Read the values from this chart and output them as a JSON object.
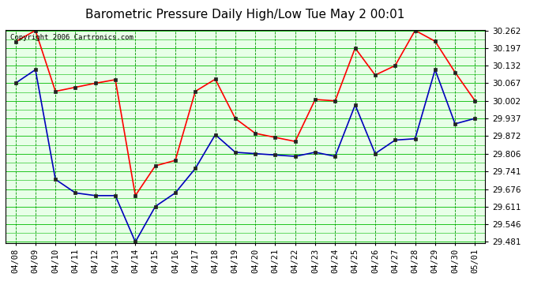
{
  "title": "Barometric Pressure Daily High/Low Tue May 2 00:01",
  "copyright": "Copyright 2006 Cartronics.com",
  "x_labels": [
    "04/08",
    "04/09",
    "04/10",
    "04/11",
    "04/12",
    "04/13",
    "04/14",
    "04/15",
    "04/16",
    "04/17",
    "04/18",
    "04/19",
    "04/20",
    "04/21",
    "04/22",
    "04/23",
    "04/24",
    "04/25",
    "04/26",
    "04/27",
    "04/28",
    "04/29",
    "04/30",
    "05/01"
  ],
  "high_values": [
    30.22,
    30.262,
    30.037,
    30.052,
    30.067,
    30.08,
    29.652,
    29.762,
    29.782,
    30.037,
    30.082,
    29.937,
    29.882,
    29.867,
    29.852,
    30.007,
    30.002,
    30.197,
    30.097,
    30.132,
    30.262,
    30.222,
    30.107,
    30.002
  ],
  "low_values": [
    30.067,
    30.117,
    29.712,
    29.662,
    29.652,
    29.652,
    29.481,
    29.612,
    29.662,
    29.752,
    29.877,
    29.812,
    29.807,
    29.802,
    29.797,
    29.812,
    29.797,
    29.987,
    29.807,
    29.857,
    29.862,
    30.117,
    29.917,
    29.937
  ],
  "high_color": "#ff0000",
  "low_color": "#0000bb",
  "marker_size": 3,
  "line_width": 1.2,
  "bg_color": "#ffffff",
  "plot_bg_color": "#e8ffe8",
  "grid_h_color": "#00bb00",
  "grid_v_color": "#009900",
  "ylim_low": 29.481,
  "ylim_high": 30.262,
  "yticks": [
    29.481,
    29.546,
    29.611,
    29.676,
    29.741,
    29.806,
    29.872,
    29.937,
    30.002,
    30.067,
    30.132,
    30.197,
    30.262
  ],
  "title_fontsize": 11,
  "tick_fontsize": 7.5,
  "copyright_fontsize": 6.5
}
